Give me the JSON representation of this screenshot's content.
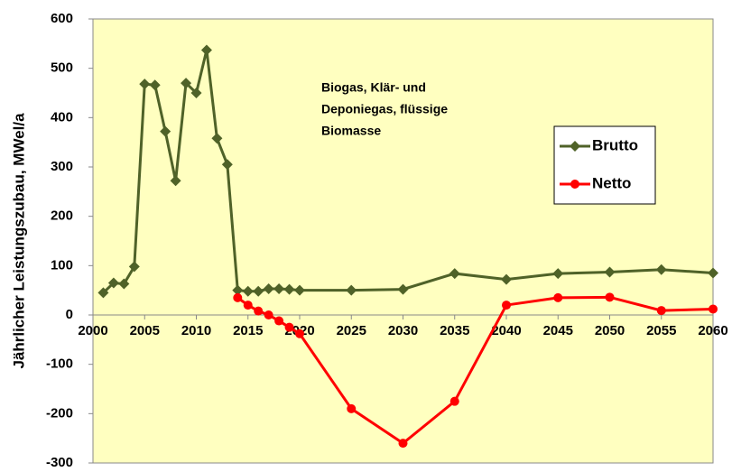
{
  "chart_data": {
    "type": "line",
    "y_label": "Jährlicher Leistungszubau, MWel/a",
    "annotation": [
      "Biogas, Klär- und",
      "Deponiegas, flüssige",
      "Biomasse"
    ],
    "xlim": [
      2000,
      2060
    ],
    "xticks": [
      2000,
      2005,
      2010,
      2015,
      2020,
      2025,
      2030,
      2035,
      2040,
      2045,
      2050,
      2055,
      2060
    ],
    "ylim": [
      -300,
      600
    ],
    "yticks": [
      -300,
      -200,
      -100,
      0,
      100,
      200,
      300,
      400,
      500,
      600
    ],
    "grid": false,
    "legend": "upper right",
    "series": [
      {
        "name": "Brutto",
        "color": "#4f6228",
        "marker": "diamond",
        "x": [
          2001,
          2002,
          2003,
          2004,
          2005,
          2006,
          2007,
          2008,
          2009,
          2010,
          2011,
          2012,
          2013,
          2014,
          2015,
          2016,
          2017,
          2018,
          2019,
          2020,
          2025,
          2030,
          2035,
          2040,
          2045,
          2050,
          2055,
          2060
        ],
        "values": [
          45,
          65,
          63,
          98,
          468,
          466,
          372,
          272,
          470,
          450,
          537,
          358,
          305,
          50,
          48,
          48,
          53,
          53,
          52,
          50,
          50,
          52,
          84,
          72,
          84,
          87,
          92,
          85
        ]
      },
      {
        "name": "Netto",
        "color": "#ff0000",
        "marker": "circle",
        "x": [
          2014,
          2015,
          2016,
          2017,
          2018,
          2019,
          2020,
          2025,
          2030,
          2035,
          2040,
          2045,
          2050,
          2055,
          2060
        ],
        "values": [
          35,
          20,
          8,
          0,
          -12,
          -25,
          -38,
          -190,
          -260,
          -175,
          20,
          35,
          36,
          9,
          12
        ]
      }
    ]
  }
}
